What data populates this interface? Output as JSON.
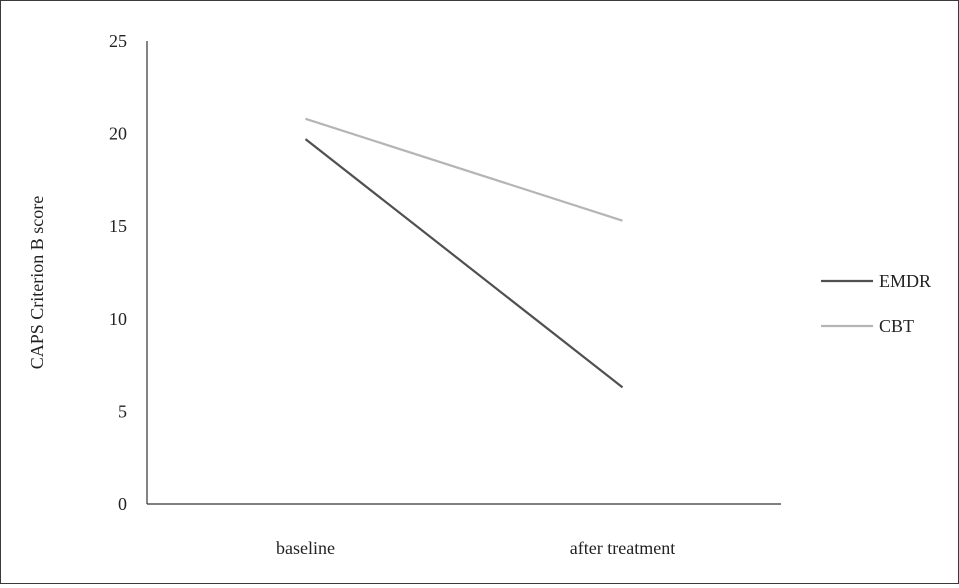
{
  "chart_data": {
    "type": "line",
    "title": "",
    "xlabel": "",
    "ylabel": "CAPS Criterion B score",
    "categories": [
      "baseline",
      "after treatment"
    ],
    "ylim": [
      0,
      25
    ],
    "yticks": [
      0,
      5,
      10,
      15,
      20,
      25
    ],
    "grid": false,
    "legend_position": "right",
    "series": [
      {
        "name": "EMDR",
        "values": [
          19.7,
          6.3
        ],
        "color": "#505050"
      },
      {
        "name": "CBT",
        "values": [
          20.8,
          15.3
        ],
        "color": "#b5b5b5"
      }
    ]
  }
}
